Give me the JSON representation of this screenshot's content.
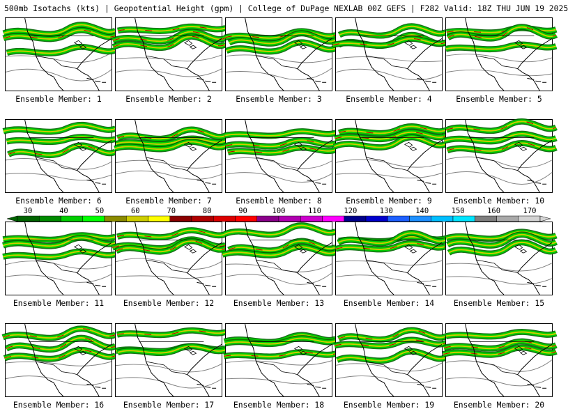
{
  "header": {
    "title": "500mb Isotachs (kts) | Geopotential Height (gpm) | College of DuPage NEXLAB   00Z GEFS | F282 Valid: 18Z THU JUN 19 2025"
  },
  "panel_label_prefix": "Ensemble Member: ",
  "members": [
    1,
    2,
    3,
    4,
    5,
    6,
    7,
    8,
    9,
    10,
    11,
    12,
    13,
    14,
    15,
    16,
    17,
    18,
    19,
    20
  ],
  "colorbar": {
    "ticks": [
      "30",
      "40",
      "50",
      "60",
      "70",
      "80",
      "90",
      "100",
      "110",
      "120",
      "130",
      "140",
      "150",
      "160",
      "170"
    ],
    "colors": [
      "#006400",
      "#008b00",
      "#00cd00",
      "#00ff00",
      "#8b8b00",
      "#cdcd00",
      "#ffff00",
      "#8b0000",
      "#b00000",
      "#dc0000",
      "#ff0000",
      "#8b008b",
      "#b000b0",
      "#cd00cd",
      "#ff00ff",
      "#00008b",
      "#0000cd",
      "#1e60ff",
      "#1e90ff",
      "#00bfff",
      "#00e5ff",
      "#7f7f7f",
      "#a9a9a9",
      "#d3d3d3"
    ]
  },
  "map_colors": {
    "coast": "#000000",
    "height_contour": "#808080",
    "jet_low": "#00cd00",
    "jet_mid": "#006400",
    "jet_core": "#cdcd00",
    "jet_max": "#b00000"
  }
}
